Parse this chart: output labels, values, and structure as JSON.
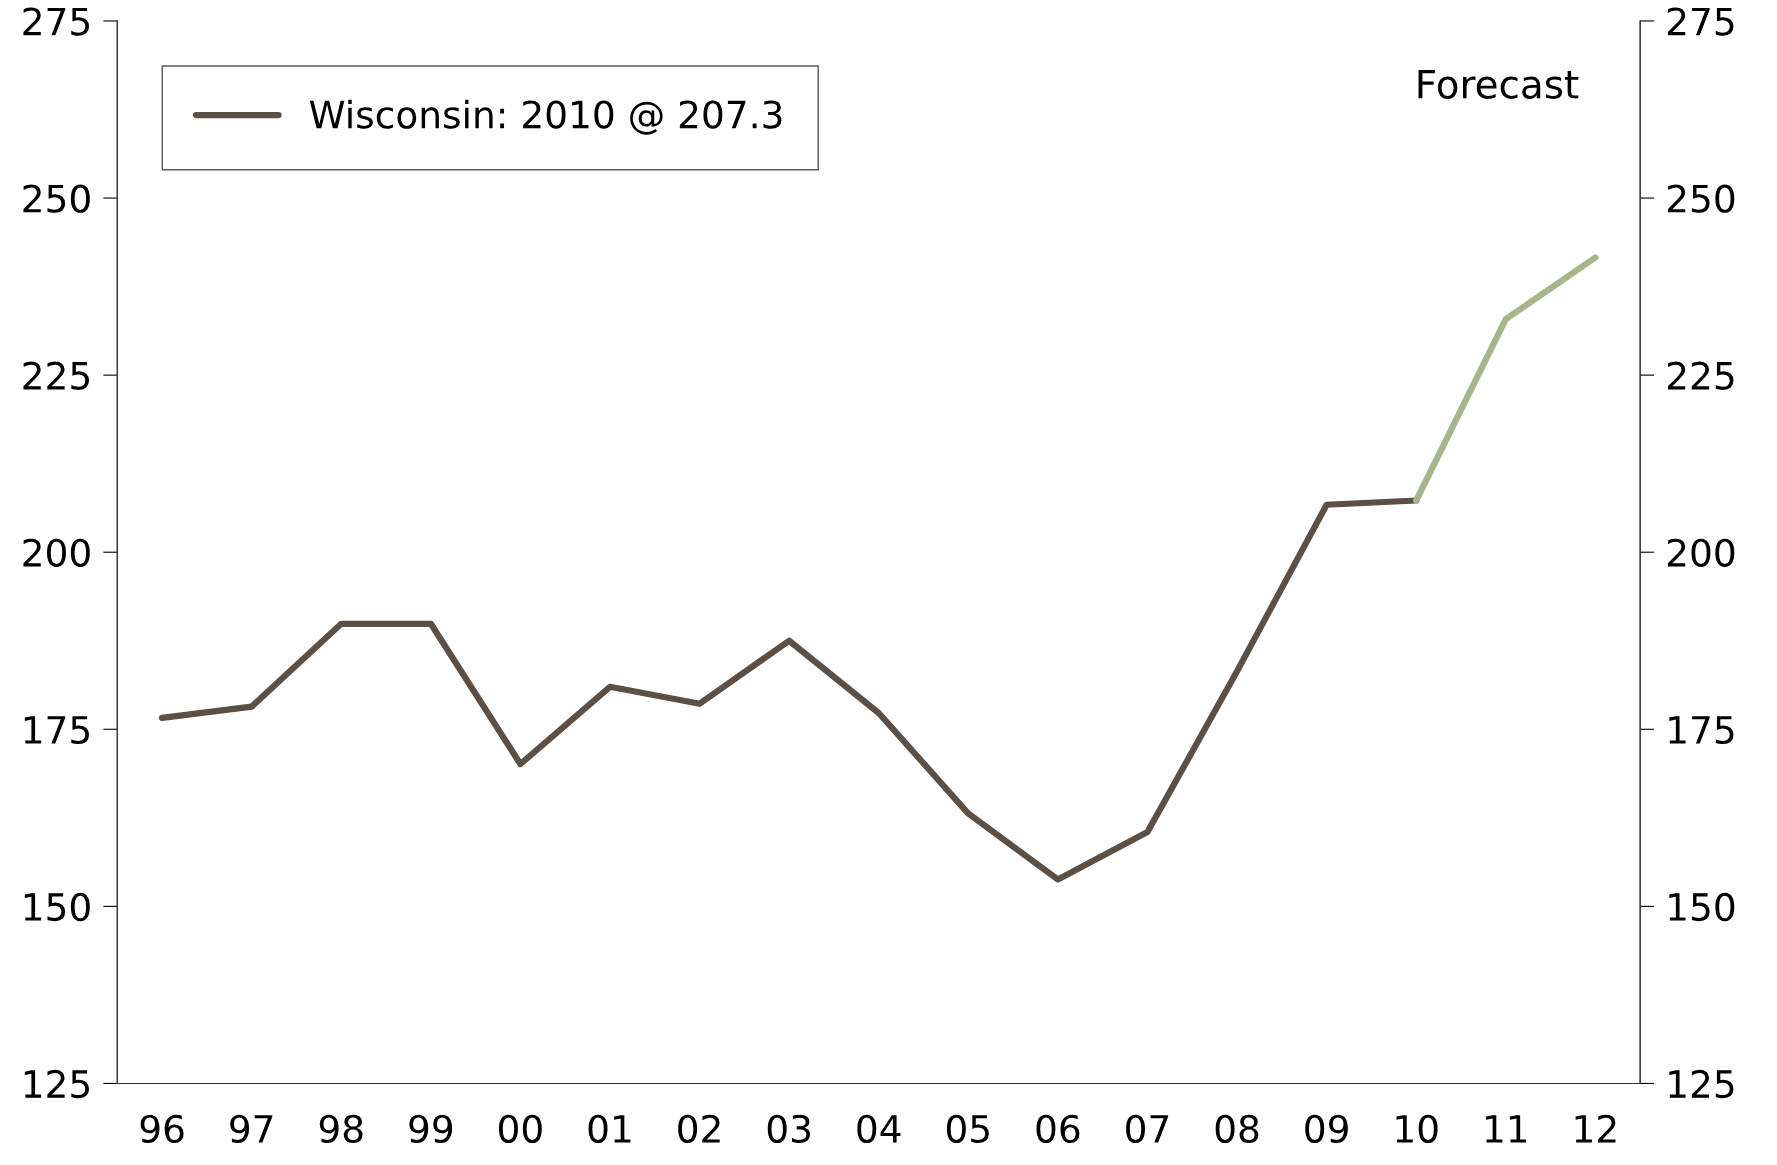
{
  "chart_data": {
    "type": "line",
    "categories": [
      "96",
      "97",
      "98",
      "99",
      "00",
      "01",
      "02",
      "03",
      "04",
      "05",
      "06",
      "07",
      "08",
      "09",
      "10",
      "11",
      "12"
    ],
    "series": [
      {
        "name": "Wisconsin: 2010 @ 207.3",
        "color": "#5c4f45",
        "values": [
          176.6,
          178.2,
          189.9,
          189.9,
          170.1,
          181.0,
          178.6,
          187.5,
          177.3,
          163.1,
          153.8,
          160.5,
          183.2,
          206.7,
          207.3,
          null,
          null
        ]
      },
      {
        "color": "#a8b58a",
        "values": [
          null,
          null,
          null,
          null,
          null,
          null,
          null,
          null,
          null,
          null,
          null,
          null,
          null,
          null,
          207.3,
          232.9,
          241.6
        ]
      }
    ],
    "ylim": [
      125,
      275
    ],
    "yticks": [
      125,
      150,
      175,
      200,
      225,
      250,
      275
    ],
    "y2lim": [
      125,
      275
    ],
    "y2ticks": [
      125,
      150,
      175,
      200,
      225,
      250,
      275
    ],
    "annotations": [
      "Forecast"
    ],
    "legend": "top left",
    "grid": false,
    "marker": "none",
    "line_style": "solid"
  }
}
